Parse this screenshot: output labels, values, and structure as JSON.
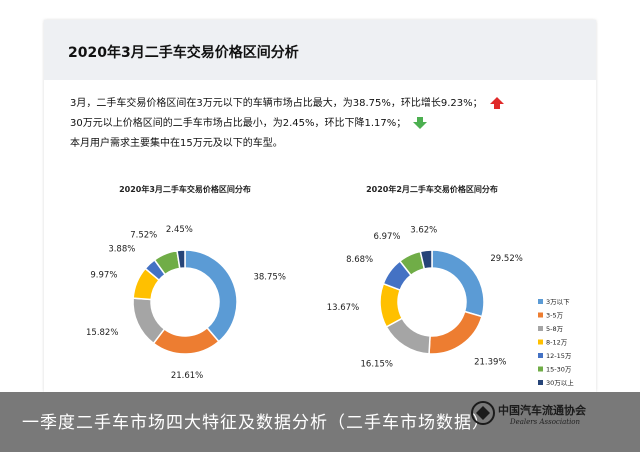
{
  "title": "2020年3月二手车交易价格区间分析",
  "summary": {
    "line1": "3月，二手车交易价格区间在3万元以下的车辆市场占比最大，为38.75%，环比增长9.23%；",
    "line2": "30万元以上价格区间的二手车市场占比最小，为2.45%，环比下降1.17%；",
    "line3": "本月用户需求主要集中在15万元及以下的车型。"
  },
  "caption": "一季度二手车市场四大特征及数据分析（二手车市场数据）",
  "logo": {
    "name": "中国汽车流通协会",
    "sub": "Dealers Association"
  },
  "colors": {
    "up": "#e02a2a",
    "down": "#4caf50"
  },
  "legend": [
    {
      "label": "3万以下",
      "color": "#5b9bd5"
    },
    {
      "label": "3-5万",
      "color": "#ed7d31"
    },
    {
      "label": "5-8万",
      "color": "#a5a5a5"
    },
    {
      "label": "8-12万",
      "color": "#ffc000"
    },
    {
      "label": "12-15万",
      "color": "#4472c4"
    },
    {
      "label": "15-30万",
      "color": "#70ad47"
    },
    {
      "label": "30万以上",
      "color": "#264478"
    }
  ],
  "chart_data": [
    {
      "type": "pie",
      "title": "2020年3月二手车交易价格区间分布",
      "categories": [
        "3万以下",
        "3-5万",
        "5-8万",
        "8-12万",
        "12-15万",
        "15-30万",
        "30万以上"
      ],
      "values": [
        38.75,
        21.61,
        15.82,
        9.97,
        3.88,
        7.52,
        2.45
      ],
      "labels": [
        "38.75%",
        "21.61%",
        "15.82%",
        "9.97%",
        "3.88%",
        "7.52%",
        "2.45%"
      ]
    },
    {
      "type": "pie",
      "title": "2020年2月二手车交易价格区间分布",
      "categories": [
        "3万以下",
        "3-5万",
        "5-8万",
        "8-12万",
        "12-15万",
        "15-30万",
        "30万以上"
      ],
      "values": [
        29.52,
        21.39,
        16.15,
        13.67,
        8.68,
        6.97,
        3.62
      ],
      "labels": [
        "29.52%",
        "21.39%",
        "16.15%",
        "13.67%",
        "8.68%",
        "6.97%",
        "3.62%"
      ]
    }
  ]
}
